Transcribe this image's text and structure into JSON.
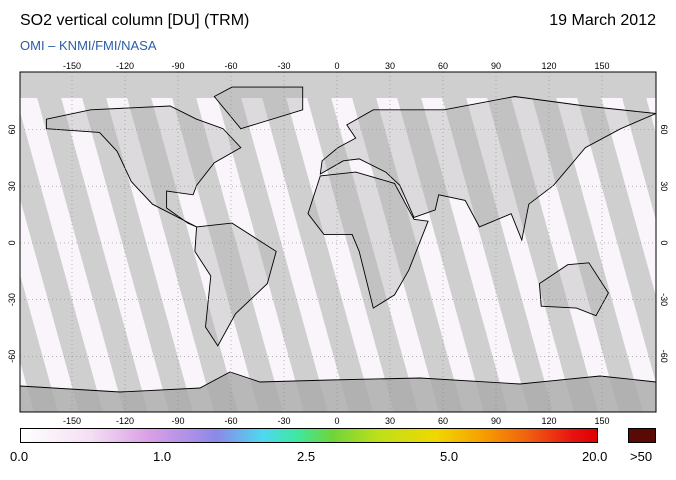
{
  "header": {
    "title": "SO2 vertical column [DU] (TRM)",
    "date": "19 March 2012",
    "source": "OMI  –  KNMI/FMI/NASA"
  },
  "map": {
    "lon_ticks": [
      -150,
      -120,
      -90,
      -60,
      -30,
      0,
      30,
      60,
      90,
      120,
      150
    ],
    "lat_ticks": [
      60,
      30,
      0,
      -30,
      -60
    ]
  },
  "colorbar": {
    "labels": [
      "0.0",
      "1.0",
      "2.5",
      "5.0",
      "20.0",
      ">50"
    ]
  }
}
